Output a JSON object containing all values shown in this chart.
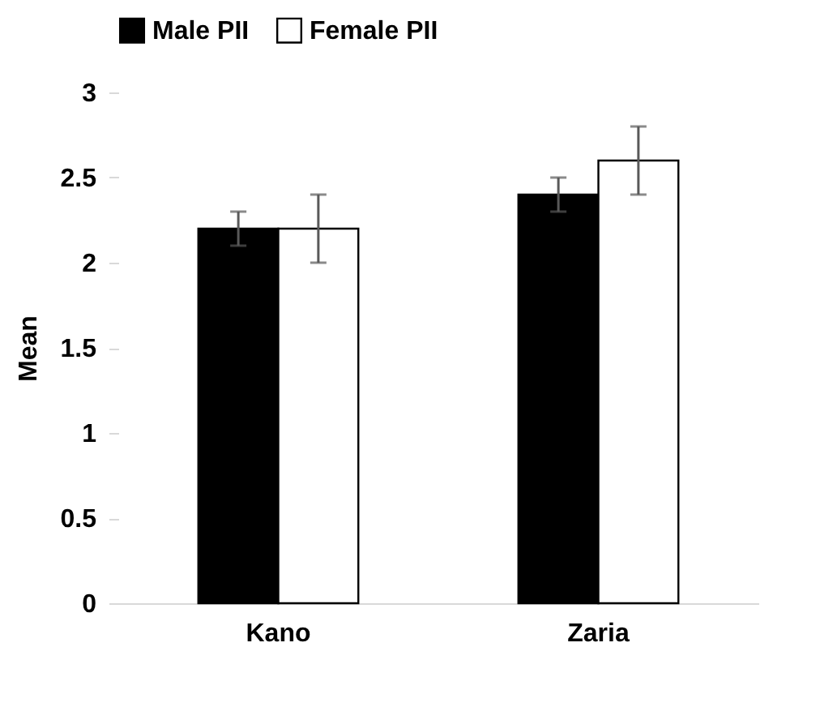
{
  "chart_data": {
    "type": "bar",
    "categories": [
      "Kano",
      "Zaria"
    ],
    "series": [
      {
        "name": "Male PII",
        "color": "#000000",
        "values": [
          2.2,
          2.4
        ],
        "errors": [
          0.1,
          0.1
        ]
      },
      {
        "name": "Female PII",
        "color": "#ffffff",
        "values": [
          2.2,
          2.6
        ],
        "errors": [
          0.2,
          0.2
        ]
      }
    ],
    "ylabel": "Mean",
    "ylim": [
      0,
      3
    ],
    "yticks": [
      0,
      0.5,
      1,
      1.5,
      2,
      2.5,
      3
    ],
    "legend": "top",
    "grid": false
  }
}
